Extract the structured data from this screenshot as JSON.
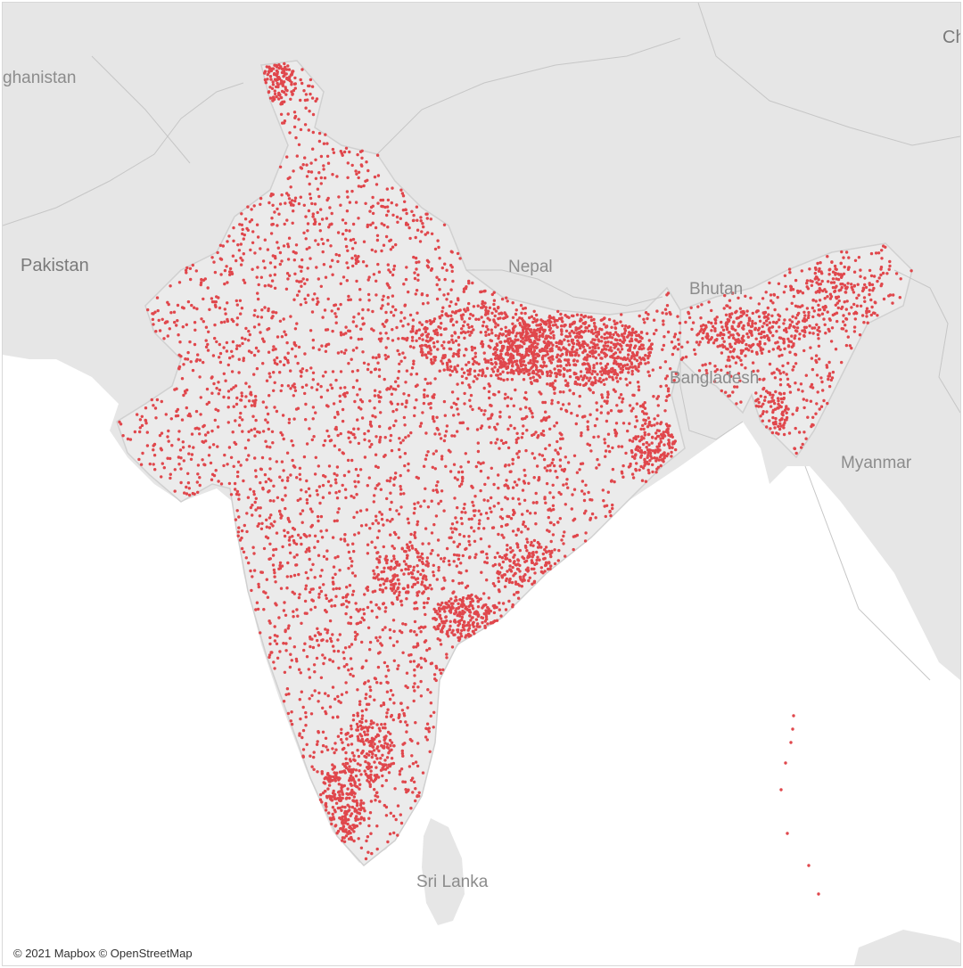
{
  "map": {
    "attribution": "© 2021 Mapbox © OpenStreetMap",
    "marker_color": "#e0474c",
    "land_color": "#e6e6e6",
    "india_color": "#ebebeb",
    "sea_color": "#ffffff",
    "border_color": "#bdbdbd",
    "labels": {
      "afghanistan": "ghanistan",
      "pakistan": "Pakistan",
      "nepal": "Nepal",
      "bhutan": "Bhutan",
      "bangladesh": "Bangladesh",
      "myanmar": "Myanmar",
      "sri_lanka": "Sri Lanka",
      "china": "Ch"
    }
  }
}
